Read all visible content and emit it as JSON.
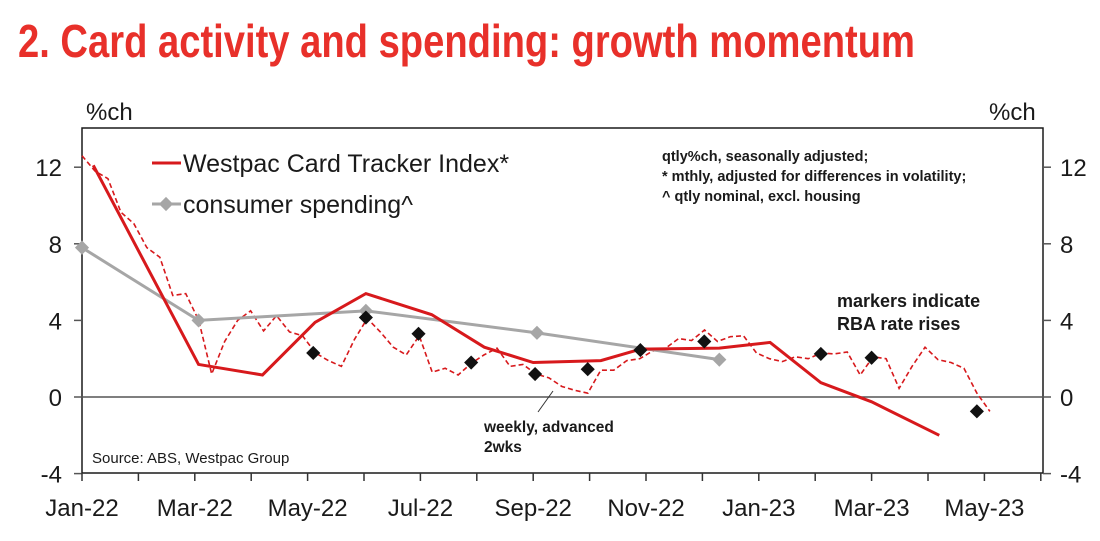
{
  "chart_data": {
    "type": "line",
    "title": "2. Card activity and spending: growth momentum",
    "ylabel_left": "%ch",
    "ylabel_right": "%ch",
    "ylim": [
      -4,
      14
    ],
    "yticks": [
      12,
      8,
      4,
      0,
      -4
    ],
    "xlim": [
      "2022-01-01",
      "2023-06-01"
    ],
    "xtick_labels": [
      "Jan-22",
      "Mar-22",
      "May-22",
      "Jul-22",
      "Sep-22",
      "Nov-22",
      "Jan-23",
      "Mar-23",
      "May-23"
    ],
    "xtick_dates": [
      "2022-01-01",
      "2022-03-01",
      "2022-05-01",
      "2022-07-01",
      "2022-09-01",
      "2022-11-01",
      "2023-01-01",
      "2023-03-01",
      "2023-05-01"
    ],
    "grid": false,
    "legend_placement": "top-left",
    "colors": {
      "card_tracker": "#d7191c",
      "consumer_spending": "#a6a6a6",
      "markers": "#111111",
      "title": "#e8302a"
    },
    "series": [
      {
        "name": "Westpac Card Tracker Index*",
        "style": "solid",
        "points": [
          [
            "2022-01-07",
            12.1
          ],
          [
            "2022-03-03",
            1.7
          ],
          [
            "2022-04-07",
            1.15
          ],
          [
            "2022-05-05",
            3.9
          ],
          [
            "2022-06-02",
            5.4
          ],
          [
            "2022-07-07",
            4.3
          ],
          [
            "2022-08-05",
            2.6
          ],
          [
            "2022-09-01",
            1.8
          ],
          [
            "2022-10-07",
            1.9
          ],
          [
            "2022-10-28",
            2.5
          ],
          [
            "2022-12-10",
            2.55
          ],
          [
            "2023-01-07",
            2.85
          ],
          [
            "2023-02-04",
            0.75
          ],
          [
            "2023-03-01",
            -0.25
          ],
          [
            "2023-04-07",
            -2.0
          ]
        ]
      },
      {
        "name": "consumer spending^",
        "style": "solid-diamond",
        "points": [
          [
            "2022-01-01",
            7.8
          ],
          [
            "2022-03-03",
            4.0
          ],
          [
            "2022-06-02",
            4.5
          ],
          [
            "2022-09-03",
            3.35
          ],
          [
            "2022-12-10",
            1.95
          ]
        ]
      },
      {
        "label": "weekly, advanced 2wks",
        "style": "dashed",
        "x_start": "2022-01-01",
        "x_step_days": 7,
        "values": [
          12.6,
          11.8,
          11.4,
          9.65,
          9.05,
          7.8,
          7.3,
          5.3,
          5.4,
          4.0,
          1.2,
          2.9,
          4.0,
          4.5,
          3.45,
          4.25,
          3.4,
          3.2,
          2.3,
          1.9,
          1.6,
          3.0,
          4.1,
          3.4,
          2.6,
          2.2,
          3.2,
          1.3,
          1.5,
          1.15,
          1.75,
          2.2,
          2.55,
          1.6,
          1.7,
          1.2,
          1.0,
          0.55,
          0.35,
          0.2,
          1.4,
          1.4,
          1.9,
          2.0,
          2.4,
          2.55,
          3.05,
          2.95,
          3.5,
          2.9,
          3.15,
          3.2,
          2.3,
          2.0,
          1.85,
          2.1,
          2.0,
          2.3,
          2.25,
          2.35,
          1.15,
          2.1,
          2.0,
          0.45,
          1.6,
          2.6,
          1.95,
          1.8,
          1.5,
          0.2,
          -0.75
        ]
      }
    ],
    "markers": {
      "label": "markers indicate RBA rate rises",
      "points": [
        [
          "2022-05-04",
          2.3
        ],
        [
          "2022-06-02",
          4.15
        ],
        [
          "2022-06-30",
          3.3
        ],
        [
          "2022-07-28",
          1.8
        ],
        [
          "2022-09-02",
          1.2
        ],
        [
          "2022-09-30",
          1.45
        ],
        [
          "2022-10-28",
          2.45
        ],
        [
          "2022-12-02",
          2.9
        ],
        [
          "2023-02-04",
          2.25
        ],
        [
          "2023-03-01",
          2.05
        ],
        [
          "2023-04-27",
          -0.75
        ]
      ]
    },
    "legend": [
      "Westpac Card Tracker Index*",
      "consumer spending^"
    ],
    "notes": [
      "qtly%ch, seasonally adjusted;",
      "* mthly, adjusted for differences in volatility;",
      "^ qtly nominal, excl. housing"
    ],
    "annotations": {
      "markers_line1": "markers indicate",
      "markers_line2": "RBA rate rises",
      "weekly_line1": "weekly, advanced",
      "weekly_line2": "2wks"
    },
    "source": "Source: ABS, Westpac Group"
  }
}
